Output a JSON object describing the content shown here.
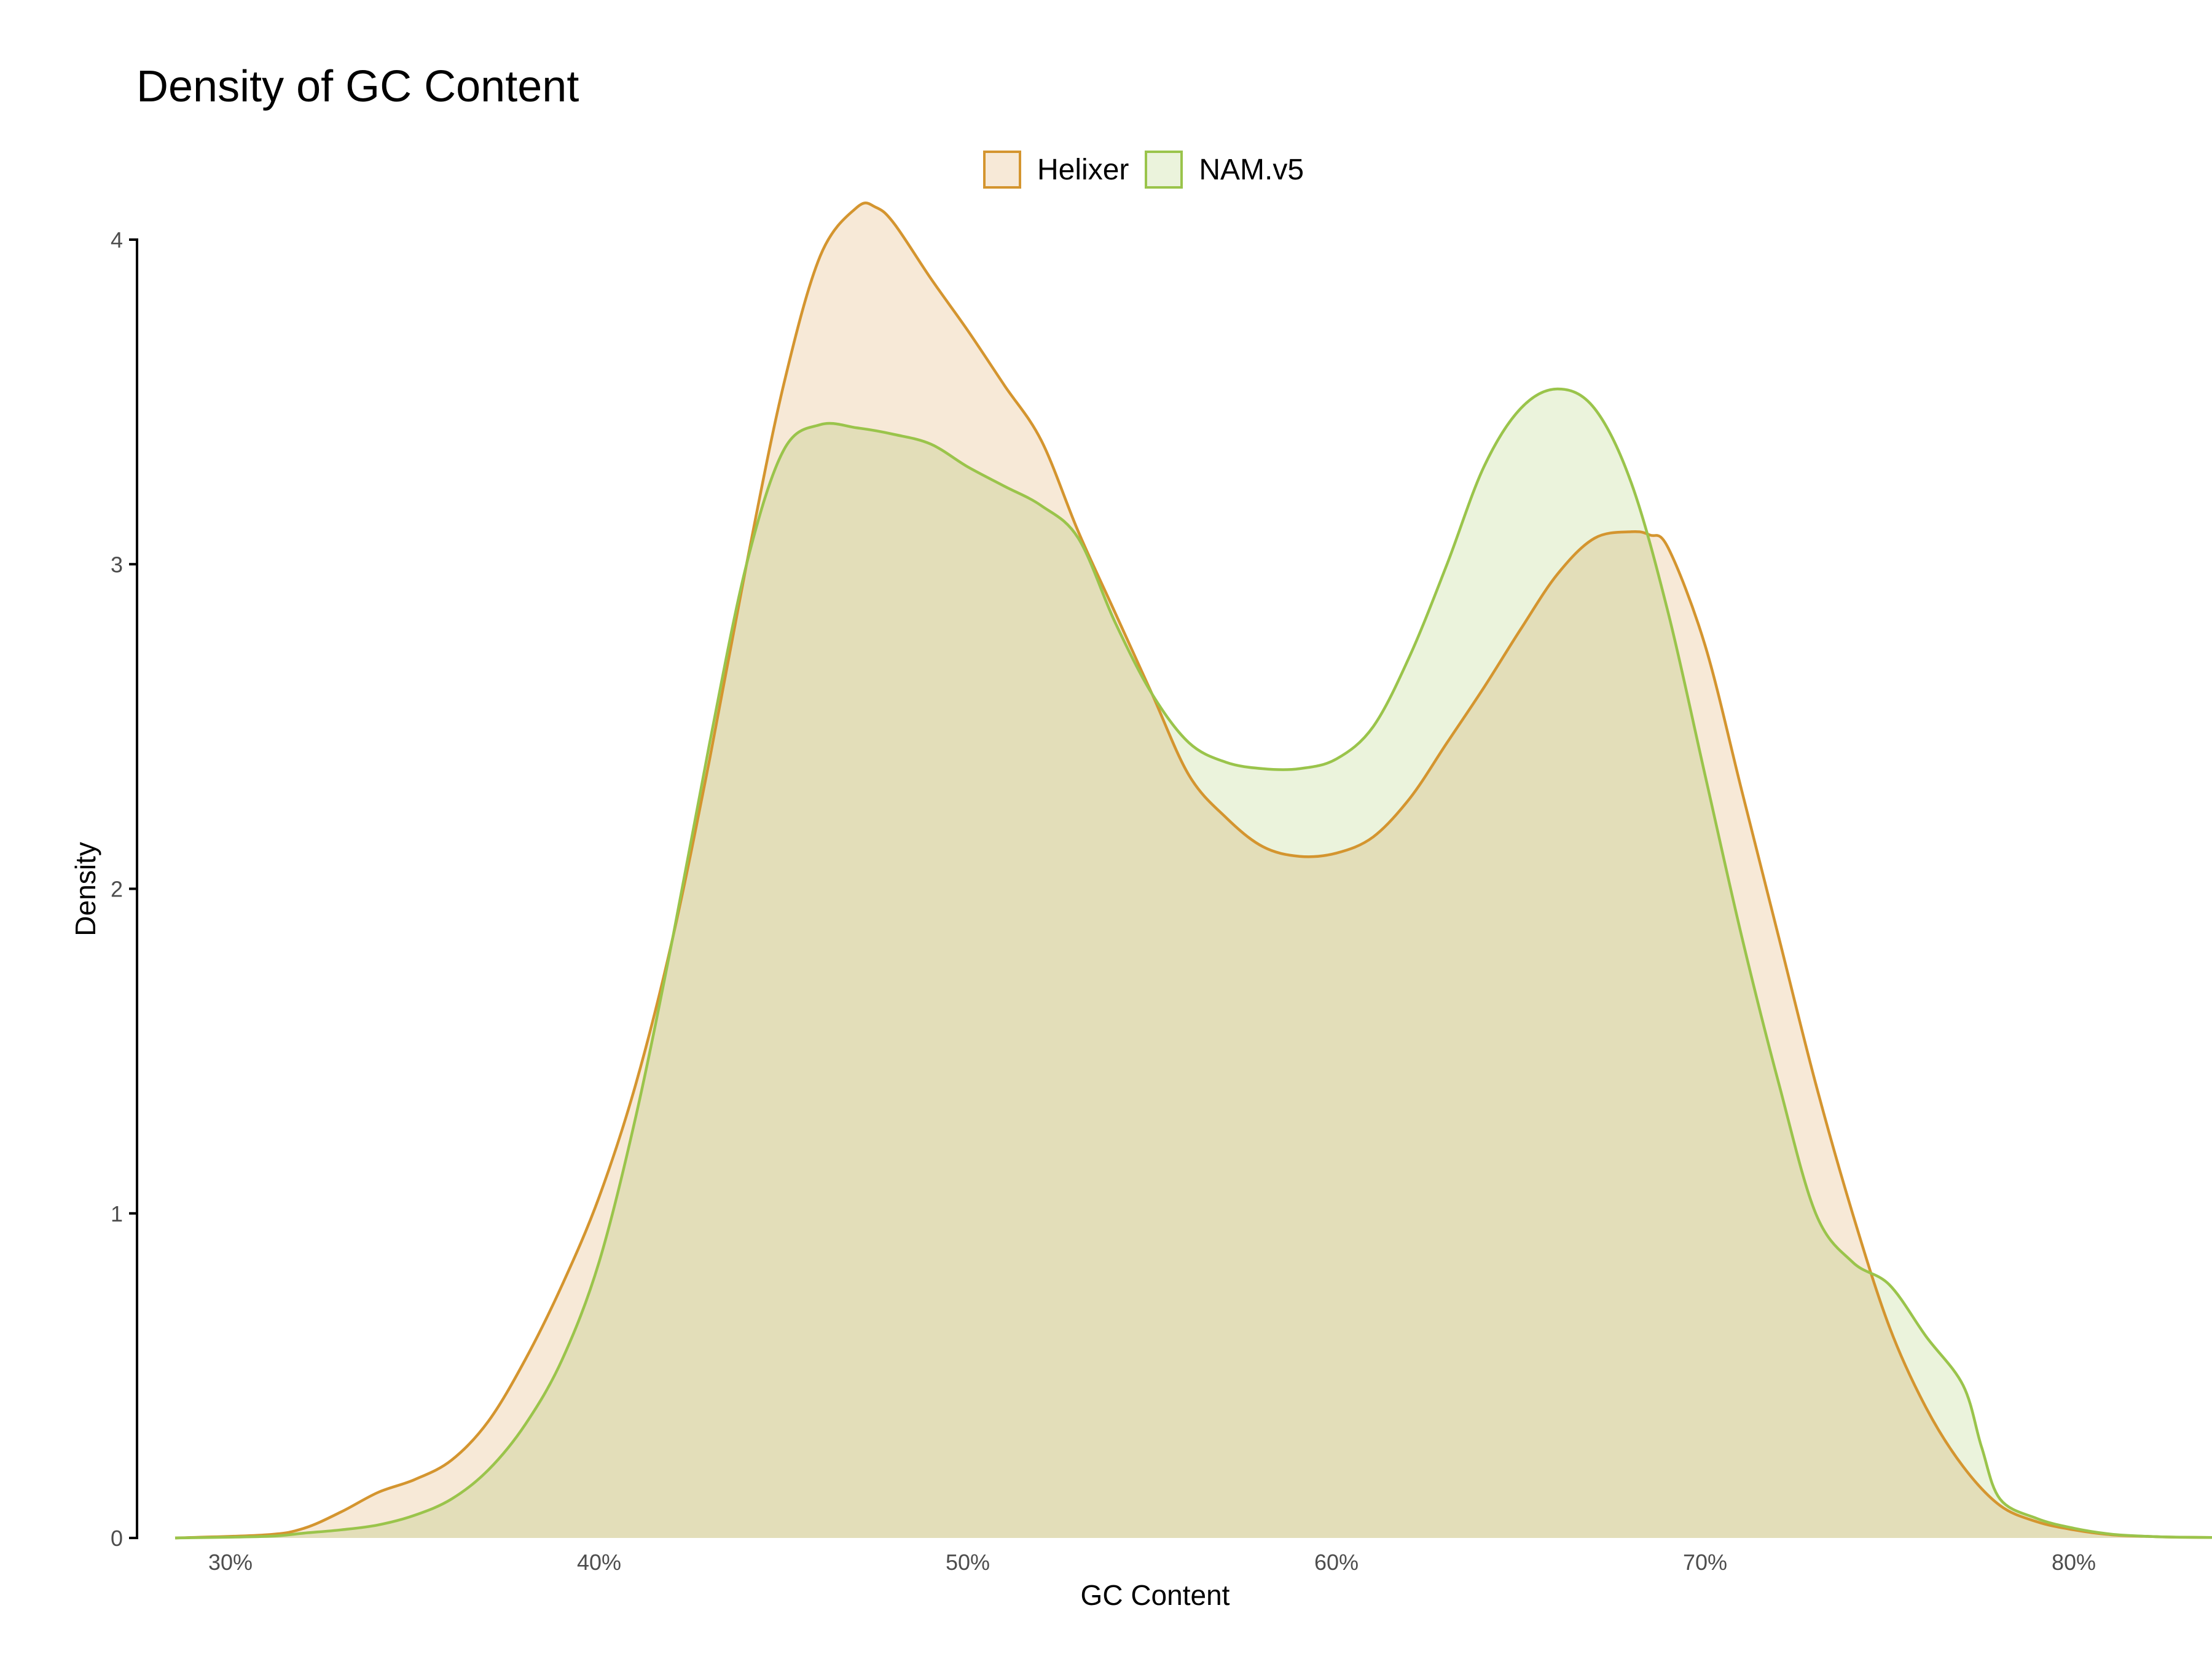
{
  "chart_data": {
    "type": "area",
    "title": "Density of GC Content",
    "xlabel": "GC Content",
    "ylabel": "Density",
    "xlim": [
      0.285,
      0.86
    ],
    "ylim": [
      0,
      4.1
    ],
    "x_ticks": [
      {
        "value": 0.3,
        "label": "30%"
      },
      {
        "value": 0.4,
        "label": "40%"
      },
      {
        "value": 0.5,
        "label": "50%"
      },
      {
        "value": 0.6,
        "label": "60%"
      },
      {
        "value": 0.7,
        "label": "70%"
      },
      {
        "value": 0.8,
        "label": "80%"
      }
    ],
    "y_ticks": [
      {
        "value": 0,
        "label": "0"
      },
      {
        "value": 1,
        "label": "1"
      },
      {
        "value": 2,
        "label": "2"
      },
      {
        "value": 3,
        "label": "3"
      },
      {
        "value": 4,
        "label": "4"
      }
    ],
    "grid": false,
    "legend_position": "top",
    "series": [
      {
        "name": "Helixer",
        "color": "#d4952f",
        "fill": "#f7e9d7",
        "x": [
          0.285,
          0.31,
          0.32,
          0.33,
          0.34,
          0.35,
          0.36,
          0.37,
          0.38,
          0.39,
          0.4,
          0.41,
          0.42,
          0.43,
          0.44,
          0.45,
          0.46,
          0.47,
          0.475,
          0.48,
          0.49,
          0.5,
          0.51,
          0.52,
          0.53,
          0.54,
          0.55,
          0.56,
          0.57,
          0.58,
          0.59,
          0.6,
          0.61,
          0.62,
          0.63,
          0.64,
          0.65,
          0.66,
          0.67,
          0.68,
          0.685,
          0.69,
          0.7,
          0.71,
          0.72,
          0.73,
          0.74,
          0.75,
          0.76,
          0.77,
          0.78,
          0.79,
          0.8,
          0.81,
          0.82,
          0.83,
          0.86
        ],
        "y": [
          0,
          0.01,
          0.03,
          0.08,
          0.14,
          0.18,
          0.24,
          0.36,
          0.55,
          0.78,
          1.05,
          1.4,
          1.85,
          2.4,
          3.0,
          3.55,
          3.95,
          4.1,
          4.1,
          4.05,
          3.88,
          3.72,
          3.55,
          3.38,
          3.1,
          2.85,
          2.6,
          2.35,
          2.22,
          2.13,
          2.1,
          2.11,
          2.16,
          2.28,
          2.45,
          2.62,
          2.8,
          2.97,
          3.08,
          3.1,
          3.09,
          3.05,
          2.75,
          2.3,
          1.85,
          1.4,
          1.0,
          0.65,
          0.4,
          0.22,
          0.1,
          0.05,
          0.025,
          0.01,
          0.005,
          0.002,
          0
        ]
      },
      {
        "name": "NAM.v5",
        "color": "#9ac44b",
        "fill": "#ebf3dc",
        "x": [
          0.285,
          0.31,
          0.32,
          0.33,
          0.34,
          0.35,
          0.36,
          0.37,
          0.38,
          0.39,
          0.4,
          0.41,
          0.42,
          0.43,
          0.44,
          0.45,
          0.46,
          0.47,
          0.48,
          0.49,
          0.5,
          0.51,
          0.52,
          0.53,
          0.54,
          0.55,
          0.56,
          0.57,
          0.58,
          0.59,
          0.6,
          0.61,
          0.62,
          0.63,
          0.64,
          0.65,
          0.66,
          0.67,
          0.68,
          0.69,
          0.7,
          0.71,
          0.72,
          0.73,
          0.74,
          0.75,
          0.76,
          0.77,
          0.775,
          0.78,
          0.79,
          0.8,
          0.81,
          0.82,
          0.83,
          0.86
        ],
        "y": [
          0,
          0.005,
          0.015,
          0.025,
          0.04,
          0.07,
          0.12,
          0.21,
          0.35,
          0.55,
          0.85,
          1.3,
          1.85,
          2.45,
          3.0,
          3.35,
          3.43,
          3.42,
          3.4,
          3.37,
          3.3,
          3.24,
          3.18,
          3.08,
          2.82,
          2.6,
          2.45,
          2.39,
          2.37,
          2.37,
          2.4,
          2.5,
          2.72,
          3.0,
          3.3,
          3.48,
          3.54,
          3.48,
          3.25,
          2.85,
          2.35,
          1.85,
          1.4,
          1.0,
          0.85,
          0.78,
          0.62,
          0.47,
          0.28,
          0.12,
          0.06,
          0.03,
          0.012,
          0.005,
          0.002,
          0
        ]
      }
    ]
  }
}
